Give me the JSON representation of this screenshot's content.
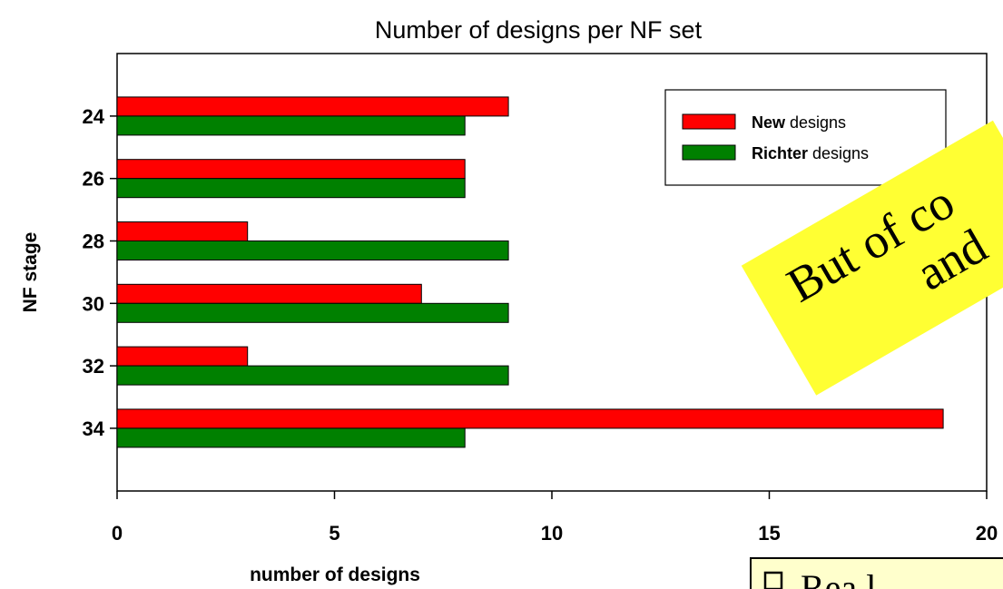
{
  "chart_data": {
    "type": "bar",
    "orientation": "horizontal",
    "title": "Number of designs per NF set",
    "xlabel": "number of designs",
    "ylabel": "NF stage",
    "categories": [
      "24",
      "26",
      "28",
      "30",
      "32",
      "34"
    ],
    "series": [
      {
        "name_bold": "New",
        "name_rest": " designs",
        "color": "#ff0000",
        "values": [
          9,
          8,
          3,
          7,
          3,
          19
        ]
      },
      {
        "name_bold": "Richter",
        "name_rest": " designs",
        "color": "#008000",
        "values": [
          8,
          8,
          9,
          9,
          9,
          8
        ]
      }
    ],
    "xlim": [
      0,
      20
    ],
    "xticks": [
      "0",
      "5",
      "10",
      "15",
      "20"
    ],
    "grid": false,
    "legend": "top-right"
  },
  "overlays": {
    "sticky_note": {
      "line1": "But of co",
      "line2": "and",
      "color": "#ffff33"
    },
    "callout": {
      "text": "Rea l ",
      "color": "#ffffcc"
    }
  }
}
